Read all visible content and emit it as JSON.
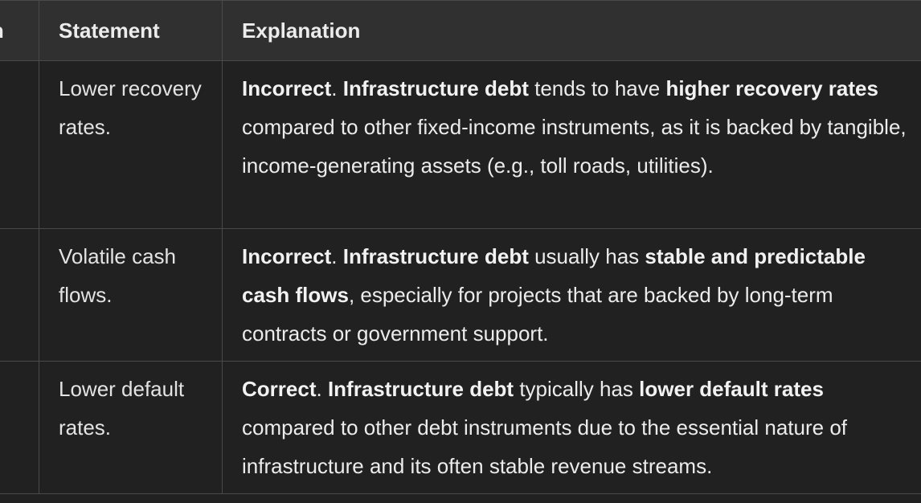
{
  "table": {
    "headers": {
      "option": "on",
      "statement": "Statement",
      "explanation": "Explanation"
    },
    "rows": [
      {
        "statement": "Lower recovery rates.",
        "verdict": "Incorrect",
        "sep1": ". ",
        "subject": "Infrastructure debt",
        "mid1": " tends to have ",
        "key": "higher recovery rates",
        "rest": " compared to other fixed-income instruments, as it is backed by tangible, income-generating assets (e.g., toll roads, utilities)."
      },
      {
        "statement": "Volatile cash flows.",
        "verdict": "Incorrect",
        "sep1": ". ",
        "subject": "Infrastructure debt",
        "mid1": " usually has ",
        "key": "stable and predictable cash flows",
        "rest": ", especially for projects that are backed by long-term contracts or government support."
      },
      {
        "statement": "Lower default rates.",
        "verdict": "Correct",
        "sep1": ". ",
        "subject": "Infrastructure debt",
        "mid1": " typically has ",
        "key": "lower default rates",
        "rest": " compared to other debt instruments due to the essential nature of infrastructure and its often stable revenue streams."
      }
    ]
  }
}
